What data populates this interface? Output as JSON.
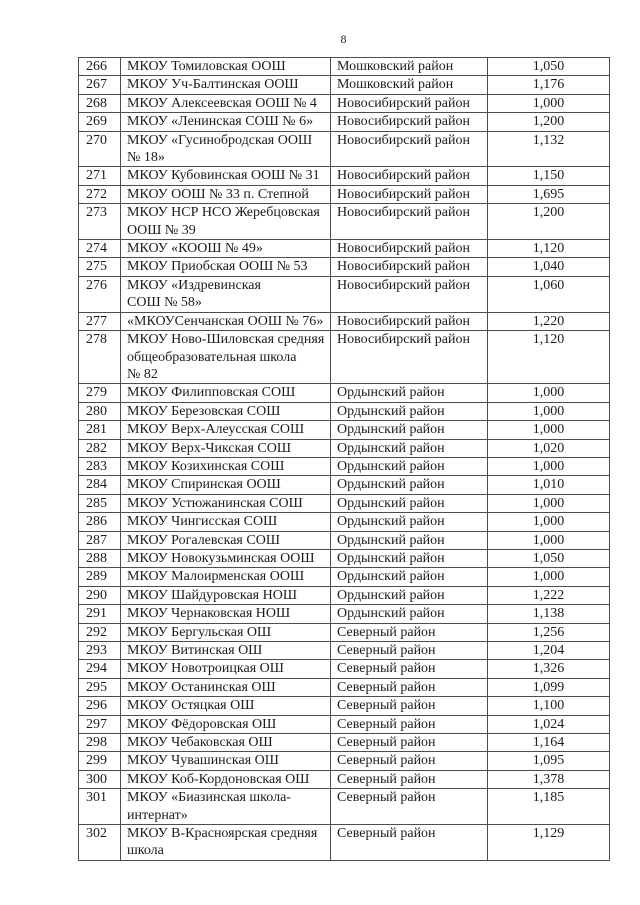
{
  "page": {
    "number": "8"
  },
  "colors": {
    "background": "#ffffff",
    "text": "#1c1c1c",
    "table_border": "#4d4d4d"
  },
  "table": {
    "columns": [
      "num",
      "name",
      "district",
      "value"
    ],
    "rows": [
      {
        "num": "266",
        "name": "МКОУ Томиловская ООШ",
        "district": "Мошковский район",
        "value": "1,050"
      },
      {
        "num": "267",
        "name": "МКОУ Уч-Балтинская ООШ",
        "district": "Мошковский район",
        "value": "1,176"
      },
      {
        "num": "268",
        "name": "МКОУ Алексеевская ООШ № 4",
        "district": "Новосибирский район",
        "value": "1,000"
      },
      {
        "num": "269",
        "name": "МКОУ «Ленинская СОШ № 6»",
        "district": "Новосибирский район",
        "value": "1,200"
      },
      {
        "num": "270",
        "name": "МКОУ «Гусинобродская ООШ\n№ 18»",
        "district": "Новосибирский район",
        "value": "1,132"
      },
      {
        "num": "271",
        "name": "МКОУ Кубовинская ООШ № 31",
        "district": "Новосибирский район",
        "value": "1,150"
      },
      {
        "num": "272",
        "name": "МКОУ ООШ № 33 п. Степной",
        "district": "Новосибирский район",
        "value": "1,695"
      },
      {
        "num": "273",
        "name": "МКОУ НСР НСО Жеребцовская\nООШ № 39",
        "district": "Новосибирский район",
        "value": "1,200"
      },
      {
        "num": "274",
        "name": "МКОУ «КООШ № 49»",
        "district": "Новосибирский район",
        "value": "1,120"
      },
      {
        "num": "275",
        "name": "МКОУ Приобская ООШ № 53",
        "district": "Новосибирский район",
        "value": "1,040"
      },
      {
        "num": "276",
        "name": "МКОУ «Издревинская\nСОШ № 58»",
        "district": "Новосибирский район",
        "value": "1,060"
      },
      {
        "num": "277",
        "name": "«МКОУСенчанская ООШ № 76»",
        "district": "Новосибирский район",
        "value": "1,220"
      },
      {
        "num": "278",
        "name": "МКОУ Ново-Шиловская средняя\nобщеобразовательная школа\n№ 82",
        "district": "Новосибирский район",
        "value": "1,120"
      },
      {
        "num": "279",
        "name": "МКОУ Филипповская СОШ",
        "district": "Ордынский район",
        "value": "1,000"
      },
      {
        "num": "280",
        "name": "МКОУ Березовская СОШ",
        "district": "Ордынский район",
        "value": "1,000"
      },
      {
        "num": "281",
        "name": "МКОУ Верх-Алеусская СОШ",
        "district": "Ордынский район",
        "value": "1,000"
      },
      {
        "num": "282",
        "name": "МКОУ Верх-Чикская СОШ",
        "district": "Ордынский район",
        "value": "1,020"
      },
      {
        "num": "283",
        "name": "МКОУ Козихинская СОШ",
        "district": "Ордынский район",
        "value": "1,000"
      },
      {
        "num": "284",
        "name": "МКОУ Спиринская ООШ",
        "district": "Ордынский район",
        "value": "1,010"
      },
      {
        "num": "285",
        "name": "МКОУ Устюжанинская СОШ",
        "district": "Ордынский район",
        "value": "1,000"
      },
      {
        "num": "286",
        "name": "МКОУ Чингисская СОШ",
        "district": "Ордынский район",
        "value": "1,000"
      },
      {
        "num": "287",
        "name": "МКОУ Рогалевская СОШ",
        "district": "Ордынский район",
        "value": "1,000"
      },
      {
        "num": "288",
        "name": "МКОУ Новокузьминская ООШ",
        "district": "Ордынский район",
        "value": "1,050"
      },
      {
        "num": "289",
        "name": "МКОУ Малоирменская ООШ",
        "district": "Ордынский район",
        "value": "1,000"
      },
      {
        "num": "290",
        "name": "МКОУ Шайдуровская НОШ",
        "district": "Ордынский район",
        "value": "1,222"
      },
      {
        "num": "291",
        "name": "МКОУ Чернаковская НОШ",
        "district": "Ордынский район",
        "value": "1,138"
      },
      {
        "num": "292",
        "name": "МКОУ Бергульская ОШ",
        "district": "Северный район",
        "value": "1,256"
      },
      {
        "num": "293",
        "name": "МКОУ Витинская ОШ",
        "district": "Северный район",
        "value": "1,204"
      },
      {
        "num": "294",
        "name": "МКОУ Новотроицкая ОШ",
        "district": "Северный район",
        "value": "1,326"
      },
      {
        "num": "295",
        "name": "МКОУ Останинская ОШ",
        "district": "Северный район",
        "value": "1,099"
      },
      {
        "num": "296",
        "name": "МКОУ Остяцкая ОШ",
        "district": "Северный район",
        "value": "1,100"
      },
      {
        "num": "297",
        "name": "МКОУ Фёдоровская ОШ",
        "district": "Северный район",
        "value": "1,024"
      },
      {
        "num": "298",
        "name": "МКОУ Чебаковская ОШ",
        "district": "Северный район",
        "value": "1,164"
      },
      {
        "num": "299",
        "name": "МКОУ Чувашинская ОШ",
        "district": "Северный район",
        "value": "1,095"
      },
      {
        "num": "300",
        "name": "МКОУ Коб-Кордоновская ОШ",
        "district": "Северный район",
        "value": "1,378"
      },
      {
        "num": "301",
        "name": "МКОУ «Биазинская  школа-\nинтернат»",
        "district": "Северный район",
        "value": "1,185"
      },
      {
        "num": "302",
        "name": "МКОУ В-Красноярская средняя\nшкола",
        "district": "Северный район",
        "value": "1,129"
      }
    ]
  }
}
